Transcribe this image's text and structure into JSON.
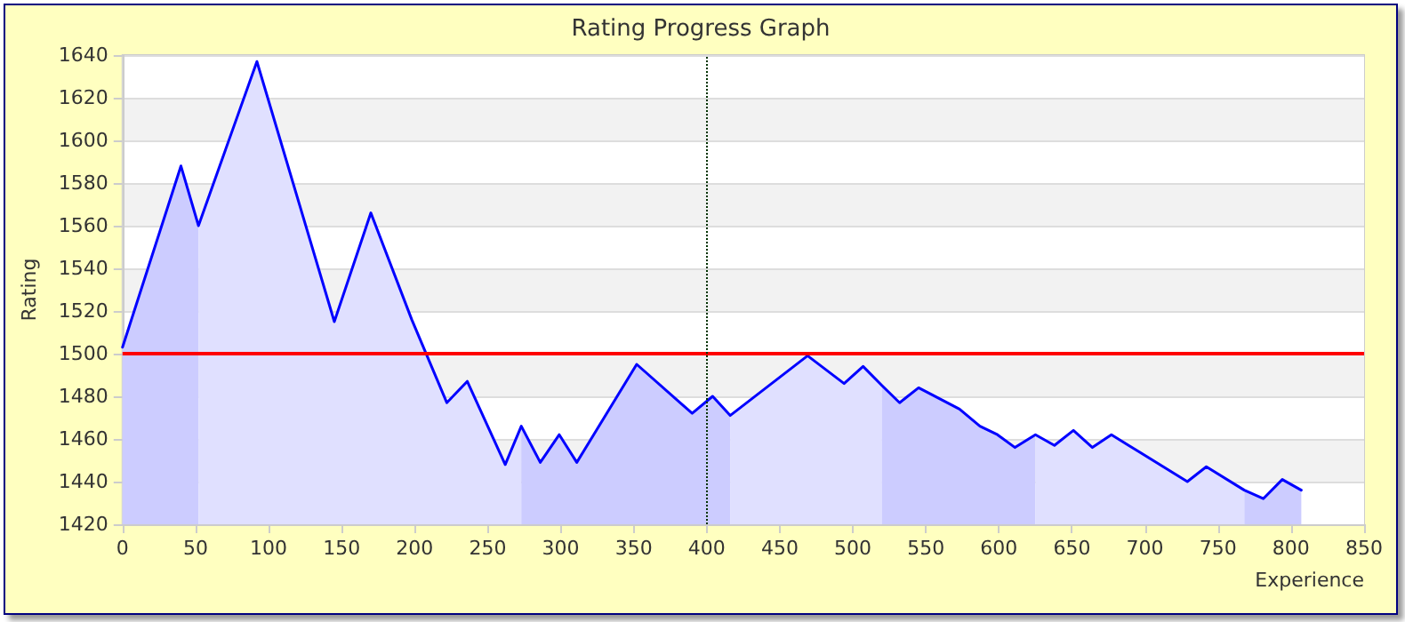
{
  "chart_data": {
    "type": "area",
    "title": "Rating Progress Graph",
    "xlabel": "Experience",
    "ylabel": "Rating",
    "series": [
      {
        "color": "#ccccff",
        "x": [
          0,
          40,
          52
        ],
        "values": [
          1503,
          1588,
          1560
        ]
      },
      {
        "color": "#e0e0ff",
        "x": [
          52,
          92,
          145,
          170,
          198,
          222,
          236,
          262,
          273
        ],
        "values": [
          1560,
          1637,
          1515,
          1566,
          1516,
          1477,
          1487,
          1448,
          1466
        ]
      },
      {
        "color": "#ccccff",
        "x": [
          273,
          286,
          299,
          311,
          352,
          390,
          404,
          416
        ],
        "values": [
          1466,
          1449,
          1462,
          1449,
          1495,
          1472,
          1480,
          1471
        ]
      },
      {
        "color": "#e0e0ff",
        "x": [
          416,
          469,
          494,
          507,
          520
        ],
        "values": [
          1471,
          1499,
          1486,
          1494,
          1485
        ]
      },
      {
        "color": "#ccccff",
        "x": [
          520,
          532,
          545,
          573,
          587,
          599,
          611,
          625
        ],
        "values": [
          1485,
          1477,
          1484,
          1474,
          1466,
          1462,
          1456,
          1462
        ]
      },
      {
        "color": "#e0e0ff",
        "x": [
          625,
          638,
          651,
          664,
          677,
          729,
          742,
          768
        ],
        "values": [
          1462,
          1457,
          1464,
          1456,
          1462,
          1440,
          1447,
          1436
        ]
      },
      {
        "color": "#ccccff",
        "x": [
          768,
          781,
          794,
          807
        ],
        "values": [
          1436,
          1432,
          1441,
          1436
        ]
      },
      {
        "type": "line",
        "color": "#0000ff",
        "x": [
          0,
          40,
          52,
          92,
          145,
          170,
          198,
          222,
          236,
          262,
          273,
          286,
          299,
          311,
          352,
          390,
          404,
          416,
          469,
          494,
          507,
          520,
          532,
          545,
          573,
          587,
          599,
          611,
          625,
          638,
          651,
          664,
          677,
          729,
          742,
          768,
          781,
          794,
          807
        ],
        "values": [
          1503,
          1588,
          1560,
          1637,
          1515,
          1566,
          1516,
          1477,
          1487,
          1448,
          1466,
          1449,
          1462,
          1449,
          1495,
          1472,
          1480,
          1471,
          1499,
          1486,
          1494,
          1485,
          1477,
          1484,
          1474,
          1466,
          1462,
          1456,
          1462,
          1457,
          1464,
          1456,
          1462,
          1440,
          1447,
          1436,
          1432,
          1441,
          1436
        ]
      }
    ],
    "xlim": [
      0,
      850
    ],
    "xticks": [
      0,
      50,
      100,
      150,
      200,
      250,
      300,
      350,
      400,
      450,
      500,
      550,
      600,
      650,
      700,
      750,
      800,
      850
    ],
    "ylim": [
      1420,
      1640
    ],
    "yticks": [
      1420,
      1440,
      1460,
      1480,
      1500,
      1520,
      1540,
      1560,
      1580,
      1600,
      1620,
      1640
    ],
    "grid": "y",
    "marker": "none",
    "line_style": "solid",
    "ref_lines": [
      {
        "axis": "y",
        "value": 1500,
        "color": "#ff0000",
        "line_style": "solid"
      },
      {
        "axis": "x",
        "value": 400,
        "color": "#003300",
        "line_style": "dotted"
      }
    ]
  }
}
